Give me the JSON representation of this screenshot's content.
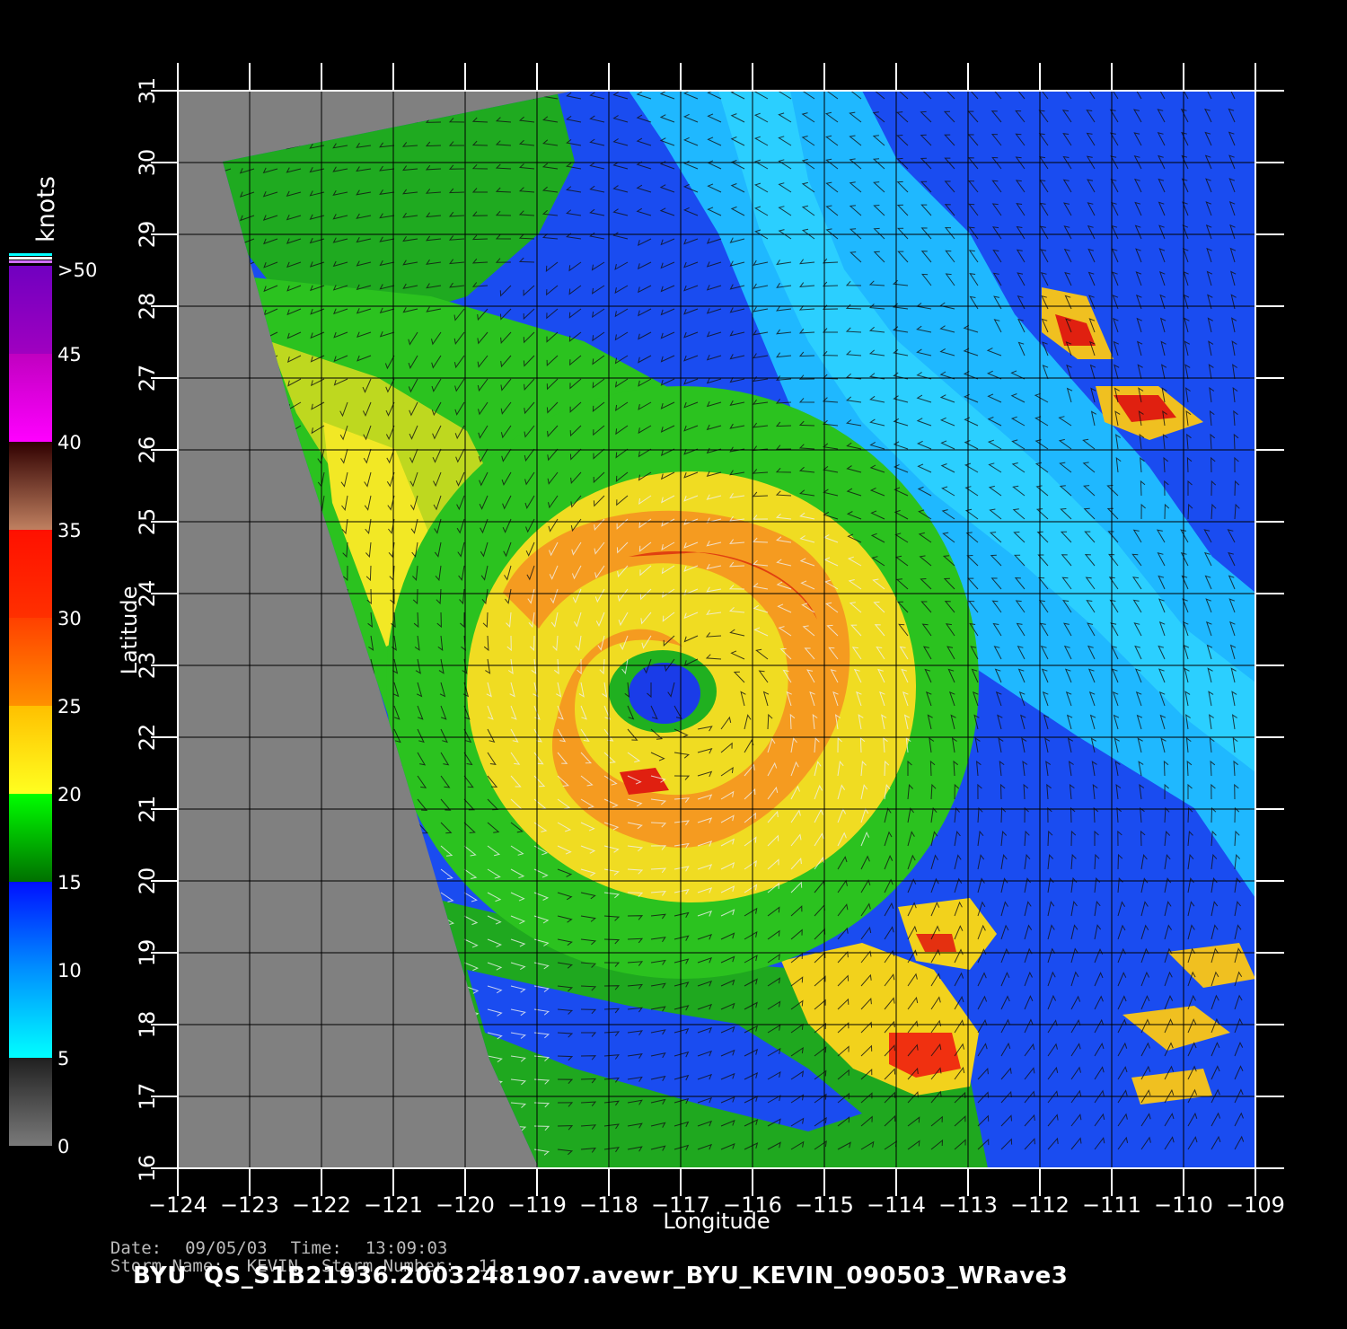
{
  "colorbar": {
    "unit_label": "knots",
    "ticks": [
      "0",
      "5",
      "10",
      "15",
      "20",
      "25",
      "30",
      "35",
      "40",
      "45",
      ">50"
    ],
    "bands": [
      {
        "min": 0,
        "max": 5,
        "colors": [
          "#7a7a7a",
          "#202020"
        ]
      },
      {
        "min": 5,
        "max": 10,
        "colors": [
          "#00ffff",
          "#0090ff"
        ]
      },
      {
        "min": 10,
        "max": 15,
        "colors": [
          "#0090ff",
          "#0010ff"
        ]
      },
      {
        "min": 15,
        "max": 20,
        "colors": [
          "#007000",
          "#00ff00"
        ]
      },
      {
        "min": 20,
        "max": 25,
        "colors": [
          "#ffff20",
          "#ffc000"
        ]
      },
      {
        "min": 25,
        "max": 30,
        "colors": [
          "#ff9000",
          "#ff4000"
        ]
      },
      {
        "min": 30,
        "max": 35,
        "colors": [
          "#ff3000",
          "#ff1000"
        ]
      },
      {
        "min": 35,
        "max": 40,
        "colors": [
          "#c08060",
          "#300000"
        ]
      },
      {
        "min": 40,
        "max": 45,
        "colors": [
          "#ff00ff",
          "#c000c0"
        ]
      },
      {
        "min": 45,
        "max": 50,
        "colors": [
          "#a000c0",
          "#7000c0"
        ]
      }
    ]
  },
  "map": {
    "x_axis_label": "Longitude",
    "y_axis_label": "Latitude",
    "lon_range": [
      -124,
      -109
    ],
    "lat_range": [
      16,
      31
    ],
    "lon_ticks": [
      "-124",
      "-123",
      "-122",
      "-121",
      "-120",
      "-119",
      "-118",
      "-117",
      "-116",
      "-115",
      "-114",
      "-113",
      "-112",
      "-111",
      "-110",
      "-109"
    ],
    "lat_ticks": [
      "16",
      "17",
      "18",
      "19",
      "20",
      "21",
      "22",
      "23",
      "24",
      "25",
      "26",
      "27",
      "28",
      "29",
      "30",
      "31"
    ],
    "storm_center": {
      "lon": -116.7,
      "lat": 22.5
    },
    "eye_wind_knots": 12,
    "peak_wind_knots": 32,
    "colors": {
      "no_data": "#808080",
      "land": "#646464",
      "grid": "#000000"
    }
  },
  "info": {
    "date_label": "Date:",
    "date": "09/05/03",
    "time_label": "Time:",
    "time": "13:09:03",
    "storm_name_label": "Storm Name:",
    "storm_name": "KEVIN",
    "storm_number_label": "Storm Number:",
    "storm_number": "11"
  },
  "footer": {
    "title": "BYU  QS_S1B21936.20032481907.avewr_BYU_KEVIN_090503_WRave3"
  }
}
